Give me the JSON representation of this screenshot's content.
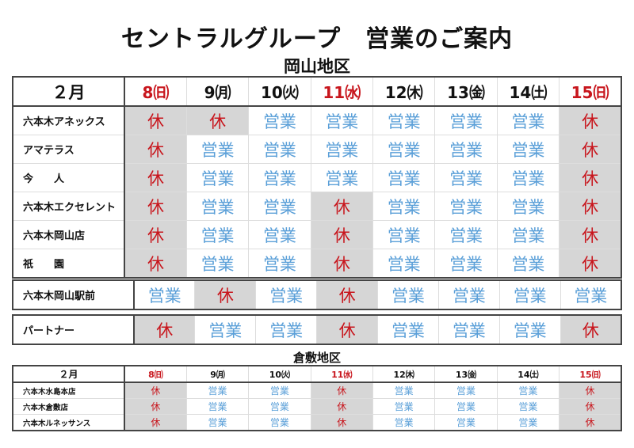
{
  "title": "セントラルグループ　営業のご案内",
  "okayama": {
    "region": "岡山地区",
    "month": "２月",
    "dates": [
      {
        "label": "8㈰",
        "holiday": true
      },
      {
        "label": "9㈪",
        "holiday": false
      },
      {
        "label": "10㈫",
        "holiday": false
      },
      {
        "label": "11㈬",
        "holiday": true
      },
      {
        "label": "12㈭",
        "holiday": false
      },
      {
        "label": "13㈮",
        "holiday": false
      },
      {
        "label": "14㈯",
        "holiday": false
      },
      {
        "label": "15㈰",
        "holiday": true
      }
    ],
    "groups": [
      [
        {
          "name": "六本木アネックス",
          "status": [
            "休",
            "休",
            "営業",
            "営業",
            "営業",
            "営業",
            "営業",
            "休"
          ]
        },
        {
          "name": "アマテラス",
          "status": [
            "休",
            "営業",
            "営業",
            "営業",
            "営業",
            "営業",
            "営業",
            "休"
          ]
        },
        {
          "name": "今　　人",
          "status": [
            "休",
            "営業",
            "営業",
            "営業",
            "営業",
            "営業",
            "営業",
            "休"
          ]
        },
        {
          "name": "六本木エクセレント",
          "status": [
            "休",
            "営業",
            "営業",
            "休",
            "営業",
            "営業",
            "営業",
            "休"
          ]
        },
        {
          "name": "六本木岡山店",
          "status": [
            "休",
            "営業",
            "営業",
            "休",
            "営業",
            "営業",
            "営業",
            "休"
          ]
        },
        {
          "name": "祇　　園",
          "status": [
            "休",
            "営業",
            "営業",
            "休",
            "営業",
            "営業",
            "営業",
            "休"
          ]
        }
      ],
      [
        {
          "name": "六本木岡山駅前",
          "status": [
            "営業",
            "休",
            "営業",
            "休",
            "営業",
            "営業",
            "営業",
            "営業"
          ]
        }
      ],
      [
        {
          "name": "パートナー",
          "status": [
            "休",
            "営業",
            "営業",
            "休",
            "営業",
            "営業",
            "営業",
            "休"
          ]
        }
      ]
    ]
  },
  "kurashiki": {
    "region": "倉敷地区",
    "month": "２月",
    "dates": [
      {
        "label": "8㈰",
        "holiday": true
      },
      {
        "label": "9㈪",
        "holiday": false
      },
      {
        "label": "10㈫",
        "holiday": false
      },
      {
        "label": "11㈬",
        "holiday": true
      },
      {
        "label": "12㈭",
        "holiday": false
      },
      {
        "label": "13㈮",
        "holiday": false
      },
      {
        "label": "14㈯",
        "holiday": false
      },
      {
        "label": "15㈰",
        "holiday": true
      }
    ],
    "rows": [
      {
        "name": "六本木水島本店",
        "status": [
          "休",
          "営業",
          "営業",
          "休",
          "営業",
          "営業",
          "営業",
          "休"
        ]
      },
      {
        "name": "六本木倉敷店",
        "status": [
          "休",
          "営業",
          "営業",
          "休",
          "営業",
          "営業",
          "営業",
          "休"
        ]
      },
      {
        "name": "六本木ルネッサンス",
        "status": [
          "休",
          "営業",
          "営業",
          "休",
          "営業",
          "営業",
          "営業",
          "休"
        ]
      }
    ]
  },
  "colors": {
    "closed": "#c8161d",
    "open": "#5a9fd8",
    "closed_bg": "#d6d6d6"
  }
}
